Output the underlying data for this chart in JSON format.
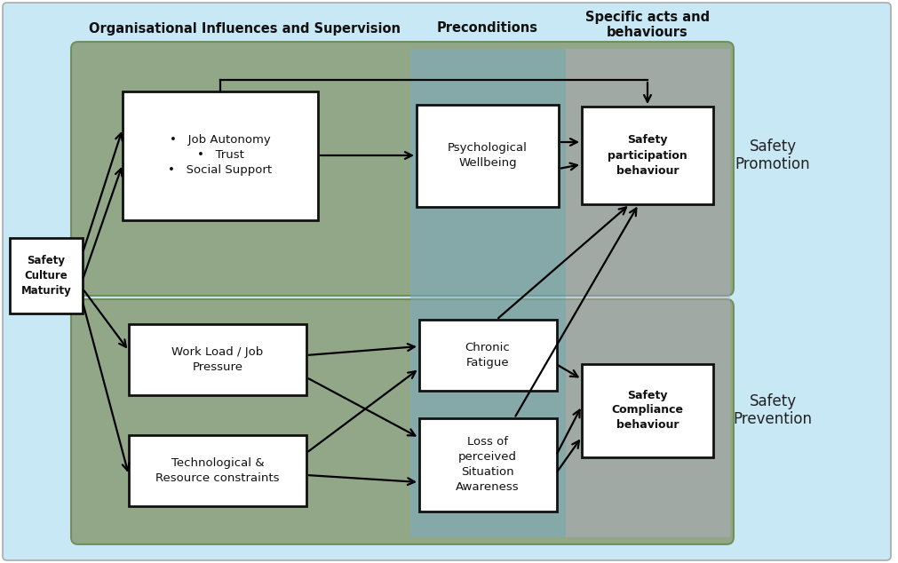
{
  "bg_color": "#ffffff",
  "light_blue_bg": "#c8e8f5",
  "green_bg_top": "#8b9e78",
  "green_bg_bot": "#8b9e78",
  "blue_overlay": "#7aaac8",
  "purple_overlay": "#b8aed0",
  "header_col1": "Organisational Influences and Supervision",
  "header_col2": "Preconditions",
  "header_col3": "Specific acts and\nbehaviours",
  "label_promotion": "Safety\nPromotion",
  "label_prevention": "Safety\nPrevention",
  "box_safety_culture": "Safety\nCulture\nMaturity",
  "box_job_autonomy": "•   Job Autonomy\n•   Trust\n•   Social Support",
  "box_psych_wellbeing": "Psychological\nWellbeing",
  "box_safety_participation": "Safety\nparticipation\nbehaviour",
  "box_workload": "Work Load / Job\nPressure",
  "box_tech_resource": "Technological &\nResource constraints",
  "box_chronic_fatigue": "Chronic\nFatigue",
  "box_loss_situation": "Loss of\nperceived\nSituation\nAwareness",
  "box_safety_compliance": "Safety\nCompliance\nbehaviour"
}
